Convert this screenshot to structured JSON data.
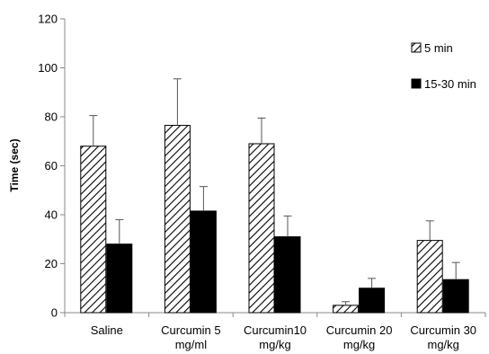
{
  "chart_data": {
    "type": "bar",
    "title": "",
    "xlabel": "",
    "ylabel": "Time (sec)",
    "ylim": [
      0,
      120
    ],
    "yticks": [
      0,
      20,
      40,
      60,
      80,
      100,
      120
    ],
    "grid": false,
    "legend_position": "top-right",
    "categories": [
      [
        "Saline"
      ],
      [
        "Curcumin 5",
        "mg/ml"
      ],
      [
        "Curcumin10",
        "mg/kg"
      ],
      [
        "Curcumin 20",
        "mg/kg"
      ],
      [
        "Curcumin 30",
        "mg/kg"
      ]
    ],
    "series": [
      {
        "name": "5 min",
        "pattern": "diagonal-hatch",
        "color": "#000000",
        "values": [
          68,
          76.5,
          69,
          3,
          29.5
        ],
        "error": [
          12.5,
          19,
          10.5,
          1.5,
          8
        ]
      },
      {
        "name": "15-30 min",
        "pattern": "solid",
        "color": "#000000",
        "values": [
          28,
          41.5,
          31,
          10,
          13.5
        ],
        "error": [
          10,
          10,
          8.5,
          4,
          7
        ]
      }
    ]
  }
}
